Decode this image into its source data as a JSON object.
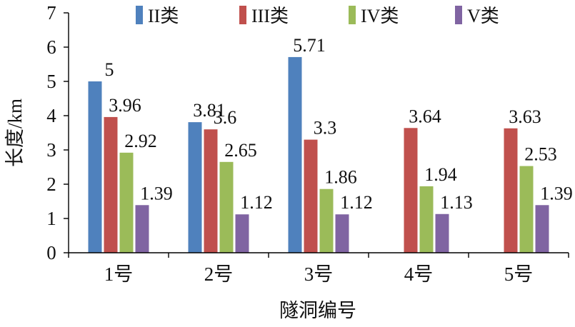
{
  "chart_data": {
    "type": "bar",
    "title": "",
    "xlabel": "隧洞编号",
    "ylabel": "长度/km",
    "ylim": [
      0,
      7
    ],
    "yticks": [
      0,
      1,
      2,
      3,
      4,
      5,
      6,
      7
    ],
    "categories": [
      "1号",
      "2号",
      "3号",
      "4号",
      "5号"
    ],
    "legend_position": "top",
    "grid": false,
    "series": [
      {
        "name": "II类",
        "color": "#4F81BD",
        "values": [
          5,
          3.81,
          5.71,
          null,
          null
        ],
        "labels": [
          "5",
          "3.81",
          "5.71",
          "",
          ""
        ]
      },
      {
        "name": "III类",
        "color": "#C0504D",
        "values": [
          3.96,
          3.6,
          3.3,
          3.64,
          3.63
        ],
        "labels": [
          "3.96",
          "3.6",
          "3.3",
          "3.64",
          "3.63"
        ]
      },
      {
        "name": "IV类",
        "color": "#9BBB59",
        "values": [
          2.92,
          2.65,
          1.86,
          1.94,
          2.53
        ],
        "labels": [
          "2.92",
          "2.65",
          "1.86",
          "1.94",
          "2.53"
        ]
      },
      {
        "name": "V类",
        "color": "#8064A2",
        "values": [
          1.39,
          1.12,
          1.12,
          1.13,
          1.39
        ],
        "labels": [
          "1.39",
          "1.12",
          "1.12",
          "1.13",
          "1.39"
        ]
      }
    ]
  }
}
